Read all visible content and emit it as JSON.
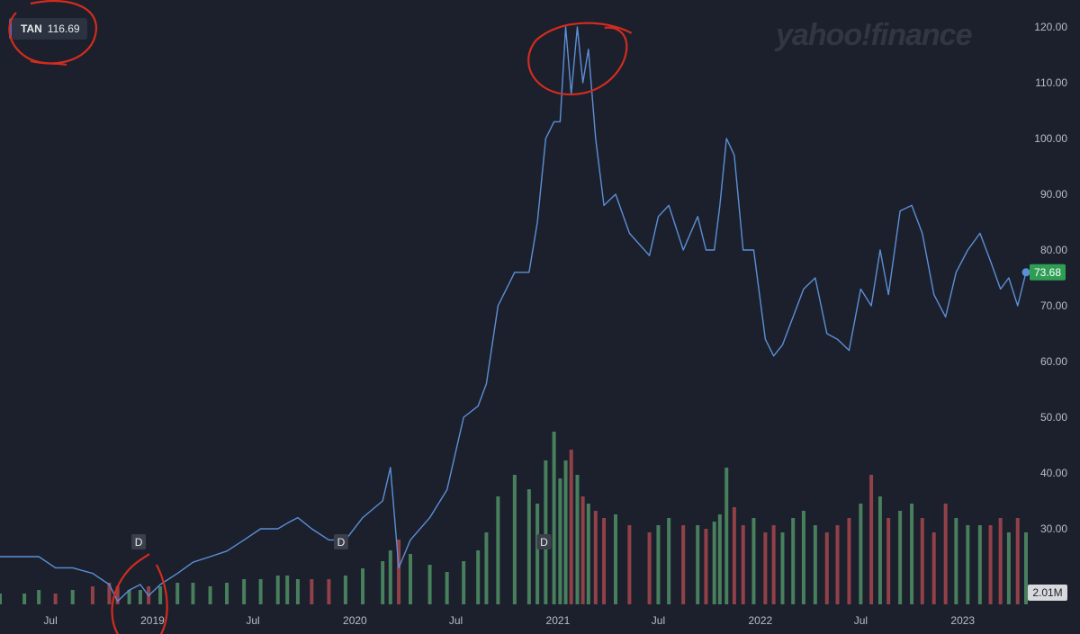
{
  "header": {
    "symbol": "TAN",
    "value": "116.69"
  },
  "watermark": "yahoo!finance",
  "last_price_label": "73.68",
  "volume_label": "2.01M",
  "dividend_marker": "D",
  "colors": {
    "background": "#1b202c",
    "price_line": "#5b8fd6",
    "volume_up": "#4e8a63",
    "volume_down": "#a0454d",
    "last_price_badge": "#2f9e55",
    "annotation": "#d12c1f",
    "axis_text": "#b8bcc4",
    "grid": "#262c38"
  },
  "chart_data": {
    "type": "line",
    "series": [
      {
        "x": [
          "2018-04-01",
          "2018-05-15",
          "2018-06-10",
          "2018-07-10",
          "2018-08-10",
          "2018-09-15",
          "2018-10-15",
          "2018-10-30",
          "2018-11-20",
          "2018-12-10",
          "2018-12-25",
          "2019-01-15",
          "2019-02-15",
          "2019-03-15",
          "2019-04-15",
          "2019-05-15",
          "2019-06-15",
          "2019-07-15",
          "2019-08-15",
          "2019-09-01",
          "2019-09-20",
          "2019-10-15",
          "2019-11-15",
          "2019-12-15",
          "2020-01-15",
          "2020-02-20",
          "2020-03-05",
          "2020-03-20",
          "2020-04-10",
          "2020-05-15",
          "2020-06-15",
          "2020-07-15",
          "2020-08-10",
          "2020-08-25",
          "2020-09-15",
          "2020-10-15",
          "2020-11-10",
          "2020-11-25",
          "2020-12-10",
          "2020-12-25",
          "2021-01-05",
          "2021-01-15",
          "2021-01-25",
          "2021-02-05",
          "2021-02-15",
          "2021-02-25",
          "2021-03-10",
          "2021-03-25",
          "2021-04-15",
          "2021-05-10",
          "2021-06-15",
          "2021-07-01",
          "2021-07-20",
          "2021-08-15",
          "2021-09-10",
          "2021-09-25",
          "2021-10-10",
          "2021-10-20",
          "2021-11-01",
          "2021-11-15",
          "2021-12-01",
          "2021-12-20",
          "2022-01-10",
          "2022-01-25",
          "2022-02-10",
          "2022-03-01",
          "2022-03-20",
          "2022-04-10",
          "2022-05-01",
          "2022-05-20",
          "2022-06-10",
          "2022-07-01",
          "2022-07-20",
          "2022-08-05",
          "2022-08-20",
          "2022-09-10",
          "2022-10-01",
          "2022-10-20",
          "2022-11-10",
          "2022-12-01",
          "2022-12-20",
          "2023-01-10",
          "2023-02-01",
          "2023-02-20",
          "2023-03-10",
          "2023-03-25",
          "2023-04-10",
          "2023-04-25"
        ],
        "values": [
          25,
          25,
          25,
          23,
          23,
          22,
          20,
          17,
          19,
          20,
          18,
          20,
          22,
          24,
          25,
          26,
          28,
          30,
          30,
          31,
          32,
          30,
          28,
          28,
          32,
          35,
          41,
          23,
          28,
          32,
          37,
          50,
          52,
          56,
          70,
          76,
          76,
          85,
          100,
          103,
          103,
          120,
          108,
          120,
          110,
          116,
          100,
          88,
          90,
          83,
          79,
          86,
          88,
          80,
          86,
          80,
          80,
          88,
          100,
          97,
          80,
          80,
          64,
          61,
          63,
          68,
          73,
          75,
          65,
          64,
          62,
          73,
          70,
          80,
          72,
          87,
          88,
          83,
          72,
          68,
          76,
          80,
          83,
          78,
          73,
          75,
          70,
          76
        ]
      }
    ],
    "volume": [
      3,
      3,
      4,
      3,
      4,
      5,
      6,
      5,
      4,
      4,
      5,
      5,
      6,
      6,
      5,
      6,
      7,
      7,
      8,
      8,
      7,
      7,
      7,
      8,
      10,
      12,
      15,
      18,
      14,
      11,
      9,
      12,
      15,
      20,
      30,
      36,
      32,
      28,
      40,
      48,
      35,
      40,
      43,
      36,
      30,
      28,
      26,
      24,
      25,
      22,
      20,
      22,
      24,
      22,
      22,
      21,
      23,
      25,
      38,
      27,
      22,
      24,
      20,
      22,
      20,
      24,
      26,
      22,
      20,
      22,
      24,
      28,
      36,
      30,
      24,
      26,
      28,
      24,
      20,
      28,
      24,
      22,
      22,
      22,
      24,
      20,
      24,
      20
    ],
    "xlabel": "",
    "ylabel": "",
    "x_ticks": [
      "Jul",
      "2019",
      "Jul",
      "2020",
      "Jul",
      "2021",
      "Jul",
      "2022",
      "Jul",
      "2023"
    ],
    "y_ticks": [
      "30.00",
      "40.00",
      "50.00",
      "60.00",
      "70.00",
      "80.00",
      "90.00",
      "100.00",
      "110.00",
      "120.00"
    ],
    "ylim": [
      20,
      122
    ],
    "dividends_at": [
      "2018-12-20",
      "2019-12-20",
      "2020-12-20"
    ],
    "grid": false,
    "annotations": [
      {
        "type": "circle",
        "target": "ticker-badge"
      },
      {
        "type": "circle",
        "target": "2018 low",
        "at": "2018-12-10"
      },
      {
        "type": "circle",
        "target": "2021 peak",
        "at": "2021-01-20"
      }
    ]
  }
}
